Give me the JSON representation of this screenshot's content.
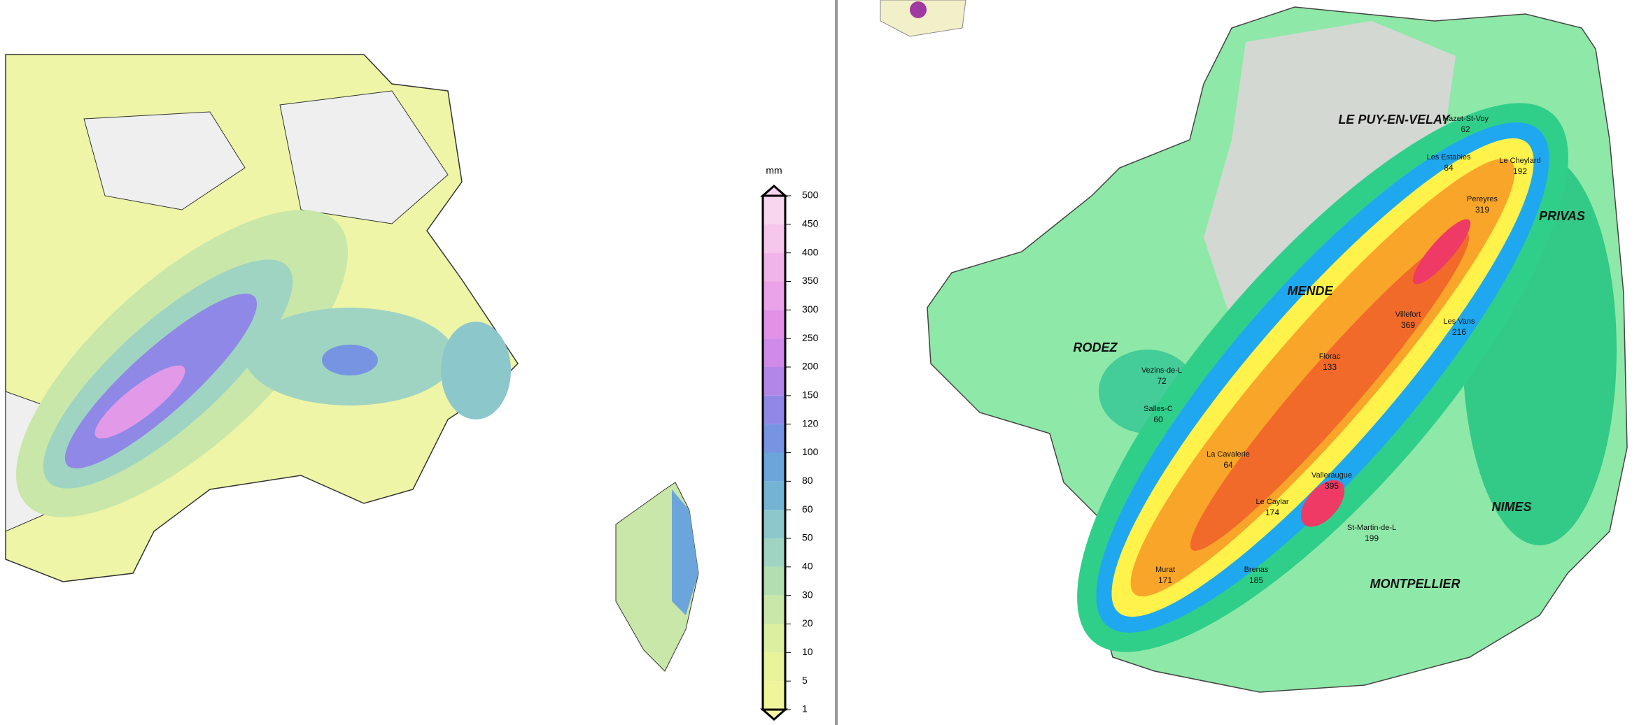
{
  "legend": {
    "unit": "mm",
    "levels": [
      {
        "value": 500,
        "color": "#f9d6f0"
      },
      {
        "value": 450,
        "color": "#f6c6ec"
      },
      {
        "value": 400,
        "color": "#f1b4ea"
      },
      {
        "value": 350,
        "color": "#eba2e8"
      },
      {
        "value": 300,
        "color": "#e290e8"
      },
      {
        "value": 250,
        "color": "#cf8aea"
      },
      {
        "value": 200,
        "color": "#b286e8"
      },
      {
        "value": 150,
        "color": "#9088e6"
      },
      {
        "value": 120,
        "color": "#7694e2"
      },
      {
        "value": 100,
        "color": "#6ba5dc"
      },
      {
        "value": 80,
        "color": "#74b3d4"
      },
      {
        "value": 60,
        "color": "#8cc7cc"
      },
      {
        "value": 50,
        "color": "#a0d4c2"
      },
      {
        "value": 40,
        "color": "#b3deb2"
      },
      {
        "value": 30,
        "color": "#c9e7a8"
      },
      {
        "value": 20,
        "color": "#dcefa0"
      },
      {
        "value": 10,
        "color": "#e8f39a"
      },
      {
        "value": 5,
        "color": "#eef59a"
      },
      {
        "value": 1,
        "color": "#f3f7a2"
      }
    ]
  },
  "cities": [
    "LE PUY-EN-VELAY",
    "MENDE",
    "RODEZ",
    "PRIVAS",
    "NIMES",
    "MONTPELLIER"
  ],
  "stations": [
    {
      "name": "Mazet-St-Voy",
      "value": 62
    },
    {
      "name": "Les Estables",
      "value": 84
    },
    {
      "name": "Le Cheylard",
      "value": 192
    },
    {
      "name": "Pereyres",
      "value": 319
    },
    {
      "name": "Villefort",
      "value": 369
    },
    {
      "name": "Les Vans",
      "value": 216
    },
    {
      "name": "Florac",
      "value": 133
    },
    {
      "name": "Valleraugue",
      "value": 395
    },
    {
      "name": "St-Martin-de-L",
      "value": 199
    },
    {
      "name": "Vezins-de-L",
      "value": 72
    },
    {
      "name": "Salles-C",
      "value": 60
    },
    {
      "name": "La Cavalerie",
      "value": 64
    },
    {
      "name": "Le Caylar",
      "value": 174
    },
    {
      "name": "Murat",
      "value": 171
    },
    {
      "name": "Brenas",
      "value": 185
    }
  ]
}
